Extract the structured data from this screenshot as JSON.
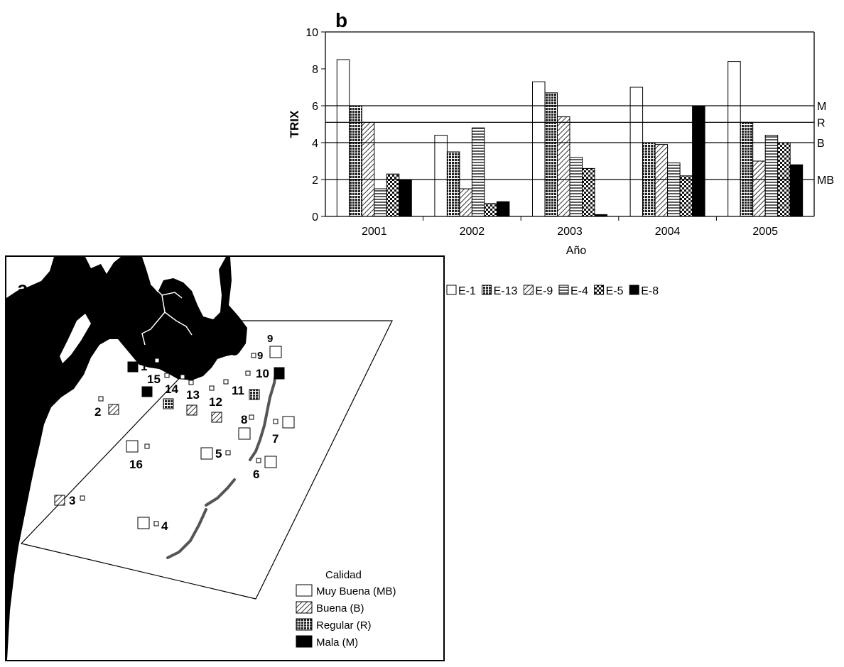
{
  "chart_data": {
    "type": "bar",
    "panel_label": "b",
    "xlabel": "Año",
    "ylabel": "TRIX",
    "ylim": [
      0,
      10
    ],
    "yticks": [
      "0",
      "2",
      "4",
      "6",
      "8",
      "10"
    ],
    "categories": [
      "2001",
      "2002",
      "2003",
      "2004",
      "2005"
    ],
    "series": [
      {
        "name": "E-1",
        "values": [
          8.5,
          4.4,
          7.3,
          7.0,
          8.4
        ]
      },
      {
        "name": "E-13",
        "values": [
          6.0,
          3.5,
          6.7,
          4.0,
          5.1
        ]
      },
      {
        "name": "E-9",
        "values": [
          5.1,
          1.5,
          5.4,
          3.9,
          3.0
        ]
      },
      {
        "name": "E-4",
        "values": [
          1.5,
          4.8,
          3.2,
          2.9,
          4.4
        ]
      },
      {
        "name": "E-5",
        "values": [
          2.3,
          0.7,
          2.6,
          2.2,
          4.0
        ]
      },
      {
        "name": "E-8",
        "values": [
          2.0,
          0.8,
          0.1,
          6.0,
          2.8
        ]
      }
    ],
    "thresholds": [
      {
        "label": "M",
        "value": 6.0
      },
      {
        "label": "R",
        "value": 5.1
      },
      {
        "label": "B",
        "value": 4.0
      },
      {
        "label": "MB",
        "value": 2.0
      }
    ],
    "legend_position": "below-right"
  },
  "map": {
    "panel_label": "a",
    "legend_title": "Calidad",
    "legend_items": [
      {
        "label": "Muy Buena (MB)",
        "pattern": "open"
      },
      {
        "label": "Buena (B)",
        "pattern": "hatch"
      },
      {
        "label": "Regular (R)",
        "pattern": "grid"
      },
      {
        "label": "Mala (M)",
        "pattern": "solid"
      }
    ],
    "stations": [
      {
        "label": "1",
        "quality": "solid"
      },
      {
        "label": "2",
        "quality": "hatch"
      },
      {
        "label": "3",
        "quality": "hatch"
      },
      {
        "label": "4",
        "quality": "open"
      },
      {
        "label": "5",
        "quality": "open"
      },
      {
        "label": "6",
        "quality": "open"
      },
      {
        "label": "7",
        "quality": "open"
      },
      {
        "label": "8",
        "quality": "open"
      },
      {
        "label": "9",
        "quality": "open"
      },
      {
        "label": "10",
        "quality": "solid"
      },
      {
        "label": "11",
        "quality": "grid"
      },
      {
        "label": "12",
        "quality": "hatch"
      },
      {
        "label": "13",
        "quality": "hatch"
      },
      {
        "label": "14",
        "quality": "grid"
      },
      {
        "label": "15",
        "quality": "solid"
      },
      {
        "label": "16",
        "quality": "open"
      }
    ]
  }
}
